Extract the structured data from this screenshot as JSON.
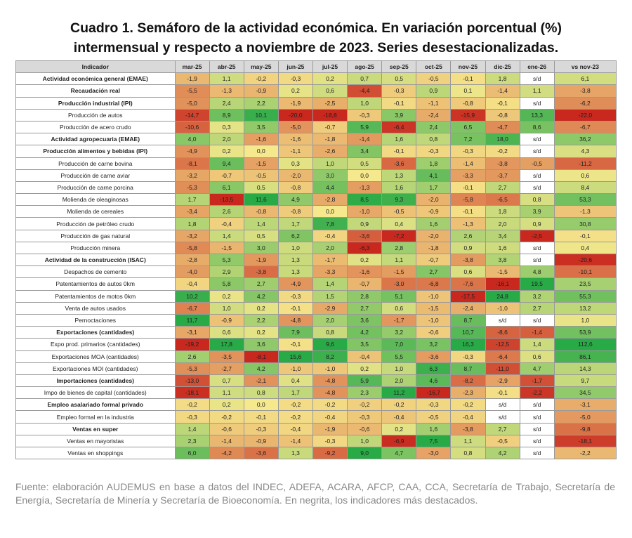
{
  "header": {
    "title": "Cuadro 1. Semáforo de la actividad económica. En variación porcentual (%) intermensual y respecto a noviembre de 2023. Series desestacionalizadas."
  },
  "table": {
    "columns": [
      "Indicador",
      "mar-25",
      "abr-25",
      "may-25",
      "jun-25",
      "jul-25",
      "ago-25",
      "sep-25",
      "oct-25",
      "nov-25",
      "dic-25",
      "ene-26",
      "vs nov-23"
    ],
    "rows": [
      {
        "label": "Actividad económica general (EMAE)",
        "bold": true,
        "cells": [
          "-1,9",
          "1,1",
          "-0,2",
          "-0,3",
          "0,2",
          "0,7",
          "0,5",
          "-0,5",
          "-0,1",
          "1,8",
          "s/d",
          "6,1"
        ]
      },
      {
        "label": "Recaudación real",
        "bold": true,
        "cells": [
          "-5,5",
          "-1,3",
          "-0,9",
          "0,2",
          "0,6",
          "-4,4",
          "-0,3",
          "0,9",
          "0,1",
          "-1,4",
          "1,1",
          "-3,8"
        ]
      },
      {
        "label": "Producción industrial (IPI)",
        "bold": true,
        "cells": [
          "-5,0",
          "2,4",
          "2,2",
          "-1,9",
          "-2,5",
          "1,0",
          "-0,1",
          "-1,1",
          "-0,8",
          "-0,1",
          "s/d",
          "-6,2"
        ]
      },
      {
        "label": "Producción de autos",
        "bold": false,
        "cells": [
          "-14,7",
          "8,9",
          "10,1",
          "-20,0",
          "-18,8",
          "-0,3",
          "3,9",
          "-2,4",
          "-15,9",
          "-0,8",
          "13,3",
          "-22,0"
        ]
      },
      {
        "label": "Producción de acero crudo",
        "bold": false,
        "cells": [
          "-10,6",
          "0,3",
          "3,5",
          "-5,0",
          "-0,7",
          "5,9",
          "-6,4",
          "2,4",
          "6,5",
          "-4,7",
          "8,6",
          "-6,7"
        ]
      },
      {
        "label": "Actividad agropecuaria (EMAE)",
        "bold": true,
        "cells": [
          "4,0",
          "2,0",
          "-1,6",
          "-1,6",
          "-1,8",
          "-1,4",
          "1,6",
          "0,8",
          "7,2",
          "18,0",
          "s/d",
          "36,2"
        ]
      },
      {
        "label": "Producción alimentos y bebidas (IPI)",
        "bold": true,
        "cells": [
          "-4,9",
          "0,2",
          "0,0",
          "-1,1",
          "-2,6",
          "3,4",
          "-0,1",
          "-0,3",
          "-0,3",
          "-0,2",
          "s/d",
          "4,3"
        ]
      },
      {
        "label": "Producción de carne bovina",
        "bold": false,
        "cells": [
          "-8,1",
          "9,4",
          "-1,5",
          "0,3",
          "1,0",
          "0,5",
          "-3,6",
          "1,8",
          "-1,4",
          "-3,8",
          "-0,5",
          "-11,2"
        ]
      },
      {
        "label": "Producción de carne aviar",
        "bold": false,
        "cells": [
          "-3,2",
          "-0,7",
          "-0,5",
          "-2,0",
          "3,0",
          "0,0",
          "1,3",
          "4,1",
          "-3,3",
          "-3,7",
          "s/d",
          "0,6"
        ]
      },
      {
        "label": "Producción de carne porcina",
        "bold": false,
        "cells": [
          "-5,3",
          "6,1",
          "0,5",
          "-0,8",
          "4,4",
          "-1,3",
          "1,6",
          "1,7",
          "-0,1",
          "2,7",
          "s/d",
          "8,4"
        ]
      },
      {
        "label": "Molienda de oleaginosas",
        "bold": false,
        "cells": [
          "1,7",
          "-13,5",
          "11,6",
          "4,9",
          "-2,8",
          "8,5",
          "9,3",
          "-2,0",
          "-5,8",
          "-6,5",
          "0,8",
          "53,3"
        ]
      },
      {
        "label": "Molienda de cereales",
        "bold": false,
        "cells": [
          "-3,4",
          "2,6",
          "-0,8",
          "-0,8",
          "0,0",
          "-1,0",
          "-0,5",
          "-0,9",
          "-0,1",
          "1,8",
          "3,9",
          "-1,3"
        ]
      },
      {
        "label": "Producción de petróleo crudo",
        "bold": false,
        "cells": [
          "1,8",
          "-0,4",
          "1,4",
          "1,7",
          "7,8",
          "0,9",
          "0,4",
          "1,6",
          "-1,3",
          "2,0",
          "0,9",
          "30,8"
        ]
      },
      {
        "label": "Producción de gas natural",
        "bold": false,
        "cells": [
          "-3,2",
          "1,4",
          "0,5",
          "6,2",
          "-0,4",
          "-3,6",
          "-7,2",
          "-2,0",
          "2,6",
          "3,4",
          "-2,5",
          "-0,1"
        ]
      },
      {
        "label": "Producción minera",
        "bold": false,
        "cells": [
          "-5,8",
          "-1,5",
          "3,0",
          "1,0",
          "2,0",
          "-6,3",
          "2,8",
          "-1,8",
          "0,9",
          "1,6",
          "s/d",
          "0,4"
        ]
      },
      {
        "label": "Actividad de la construcción (ISAC)",
        "bold": true,
        "cells": [
          "-2,8",
          "5,3",
          "-1,9",
          "1,3",
          "-1,7",
          "0,2",
          "1,1",
          "-0,7",
          "-3,8",
          "3,8",
          "s/d",
          "-20,6"
        ]
      },
      {
        "label": "Despachos de cemento",
        "bold": false,
        "cells": [
          "-4,0",
          "2,9",
          "-3,8",
          "1,3",
          "-3,3",
          "-1,6",
          "-1,5",
          "2,7",
          "0,6",
          "-1,5",
          "4,8",
          "-10,1"
        ]
      },
      {
        "label": "Patentamientos de autos 0km",
        "bold": false,
        "cells": [
          "-0,4",
          "5,8",
          "2,7",
          "-4,9",
          "1,4",
          "-0,7",
          "-3,0",
          "-6,8",
          "-7,6",
          "-16,1",
          "19,5",
          "23,5"
        ]
      },
      {
        "label": "Patentamientos de motos 0km",
        "bold": false,
        "cells": [
          "10,2",
          "0,2",
          "4,2",
          "-0,3",
          "1,5",
          "2,8",
          "5,1",
          "-1,0",
          "-17,5",
          "24,8",
          "3,2",
          "55,3"
        ]
      },
      {
        "label": "Venta de autos usados",
        "bold": false,
        "cells": [
          "-6,7",
          "1,0",
          "0,2",
          "-0,1",
          "-2,9",
          "2,7",
          "0,6",
          "-1,5",
          "-2,4",
          "-1,0",
          "2,7",
          "13,2"
        ]
      },
      {
        "label": "Pernoctaciones",
        "bold": false,
        "cells": [
          "11,7",
          "-0,9",
          "2,2",
          "-4,8",
          "2,0",
          "3,6",
          "-1,7",
          "-1,0",
          "8,7",
          "s/d",
          "s/d",
          "1,0"
        ]
      },
      {
        "label": "Exportaciones (cantidades)",
        "bold": true,
        "cells": [
          "-3,1",
          "0,6",
          "0,2",
          "7,9",
          "0,8",
          "4,2",
          "3,2",
          "-0,6",
          "10,7",
          "-8,6",
          "-1,4",
          "53,9"
        ]
      },
      {
        "label": "Expo prod. primarios (cantidades)",
        "bold": false,
        "cells": [
          "-19,2",
          "17,8",
          "3,6",
          "-0,1",
          "9,6",
          "3,5",
          "7,0",
          "3,2",
          "16,3",
          "-12,5",
          "1,4",
          "112,6"
        ]
      },
      {
        "label": "Exportaciones MOA (cantidades)",
        "bold": false,
        "cells": [
          "2,6",
          "-3,5",
          "-8,1",
          "15,6",
          "8,2",
          "-0,4",
          "5,5",
          "-3,6",
          "-0,3",
          "-6,4",
          "0,6",
          "86,1"
        ]
      },
      {
        "label": "Exportaciones MOI (cantidades)",
        "bold": false,
        "cells": [
          "-5,3",
          "-2,7",
          "4,2",
          "-1,0",
          "-1,0",
          "0,2",
          "1,0",
          "6,3",
          "8,7",
          "-11,0",
          "4,7",
          "14,3"
        ]
      },
      {
        "label": "Importaciones (cantidades)",
        "bold": true,
        "cells": [
          "-13,0",
          "0,7",
          "-2,1",
          "0,4",
          "-4,8",
          "5,9",
          "2,0",
          "4,6",
          "-8,2",
          "-2,9",
          "-1,7",
          "9,7"
        ]
      },
      {
        "label": "Impo de bienes de capital (cantidades)",
        "bold": false,
        "cells": [
          "-18,1",
          "1,1",
          "0,8",
          "1,7",
          "-4,8",
          "2,3",
          "11,2",
          "-16,7",
          "-2,3",
          "-0,1",
          "-2,2",
          "34,5"
        ]
      },
      {
        "label": "Empleo asalariado formal privado",
        "bold": true,
        "cells": [
          "-0,2",
          "0,2",
          "0,0",
          "-0,2",
          "-0,2",
          "-0,2",
          "-0,2",
          "-0,3",
          "-0,2",
          "s/d",
          "s/d",
          "-3,1"
        ]
      },
      {
        "label": "Empleo formal en la industria",
        "bold": false,
        "cells": [
          "-0,3",
          "-0,2",
          "-0,1",
          "-0,2",
          "-0,4",
          "-0,3",
          "-0,4",
          "-0,5",
          "-0,4",
          "s/d",
          "s/d",
          "-5,0"
        ]
      },
      {
        "label": "Ventas en super",
        "bold": true,
        "cells": [
          "1,4",
          "-0,6",
          "-0,3",
          "-0,4",
          "-1,9",
          "-0,6",
          "0,2",
          "1,6",
          "-3,8",
          "2,7",
          "s/d",
          "-9,8"
        ]
      },
      {
        "label": "Ventas en mayoristas",
        "bold": false,
        "cells": [
          "2,3",
          "-1,4",
          "-0,9",
          "-1,4",
          "-0,3",
          "1,0",
          "-6,9",
          "7,5",
          "1,1",
          "-0,5",
          "s/d",
          "-18,1"
        ]
      },
      {
        "label": "Ventas en shoppings",
        "bold": false,
        "cells": [
          "6,0",
          "-4,2",
          "-3,6",
          "1,3",
          "-9,2",
          "9,0",
          "4,7",
          "-3,0",
          "0,8",
          "4,2",
          "s/d",
          "-2,2"
        ]
      }
    ]
  },
  "footnote": "Fuente: elaboración AUDEMUS en base a datos del INDEC, ADEFA, ACARA, AFCP, CAA, CCA, Secretaría de Trabajo, Secretaría de Energía, Secretaría de Minería y Secretaría de Bioeconomía. En negrita, los indicadores más destacados."
}
